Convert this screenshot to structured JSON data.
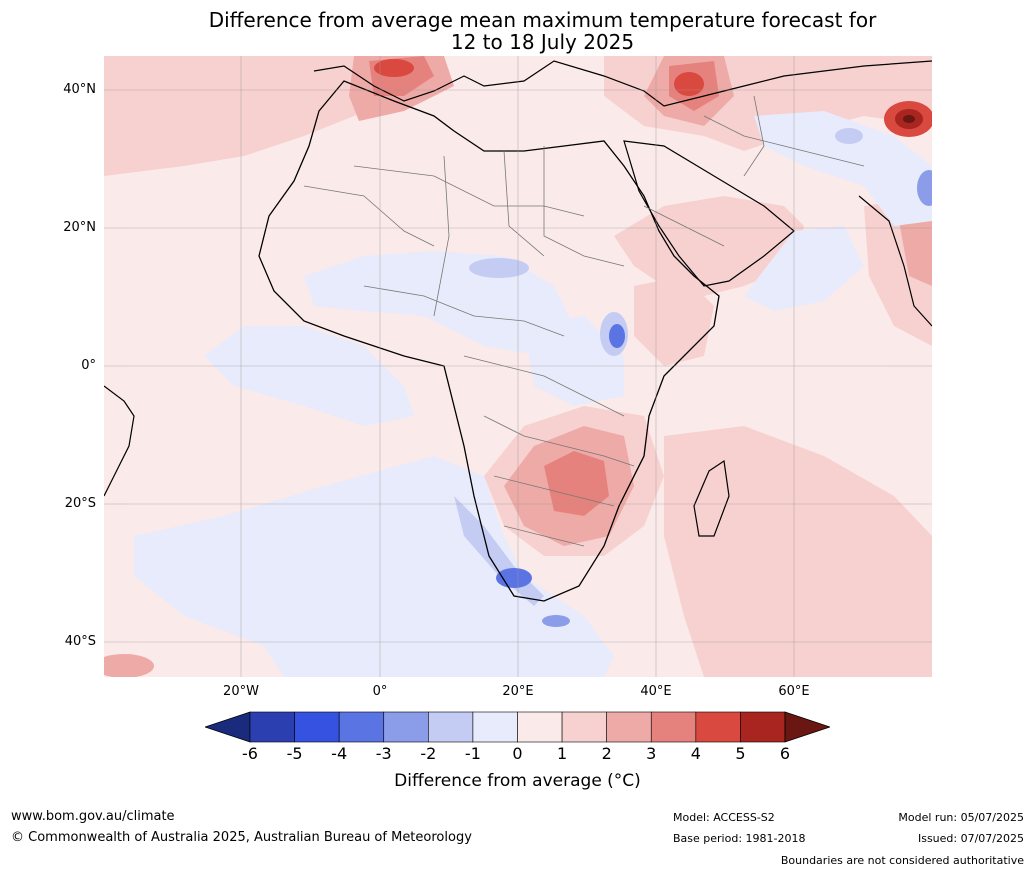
{
  "title_line1": "Difference from average mean maximum temperature forecast for",
  "title_line2": "12 to 18 July 2025",
  "lat_labels": [
    "40°N",
    "20°N",
    "0°",
    "20°S",
    "40°S"
  ],
  "lon_labels": [
    "20°W",
    "0°",
    "20°E",
    "40°E",
    "60°E"
  ],
  "colorbar": {
    "ticks": [
      "-6",
      "-5",
      "-4",
      "-3",
      "-2",
      "-1",
      "0",
      "1",
      "2",
      "3",
      "4",
      "5",
      "6"
    ],
    "colors": [
      "#1a2a7c",
      "#2b3fb0",
      "#3553e0",
      "#5b74e3",
      "#8b9ce8",
      "#c4ccf3",
      "#e8ebfb",
      "#fbeaea",
      "#f6d1cf",
      "#eeaaa6",
      "#e6827e",
      "#d9493f",
      "#a82520",
      "#6a1612"
    ],
    "label": "Difference from average ($^\\circ$C)"
  },
  "cb_label_text": "Difference from average (°C)",
  "footer": {
    "url": "www.bom.gov.au/climate",
    "copyright": "© Commonwealth of Australia 2025, Australian Bureau of Meteorology",
    "model": "Model: ACCESS-S2",
    "base_period": "Base period: 1981-2018",
    "model_run": "Model run: 05/07/2025",
    "issued": "Issued: 07/07/2025",
    "disclaimer": "Boundaries are not considered authoritative"
  }
}
